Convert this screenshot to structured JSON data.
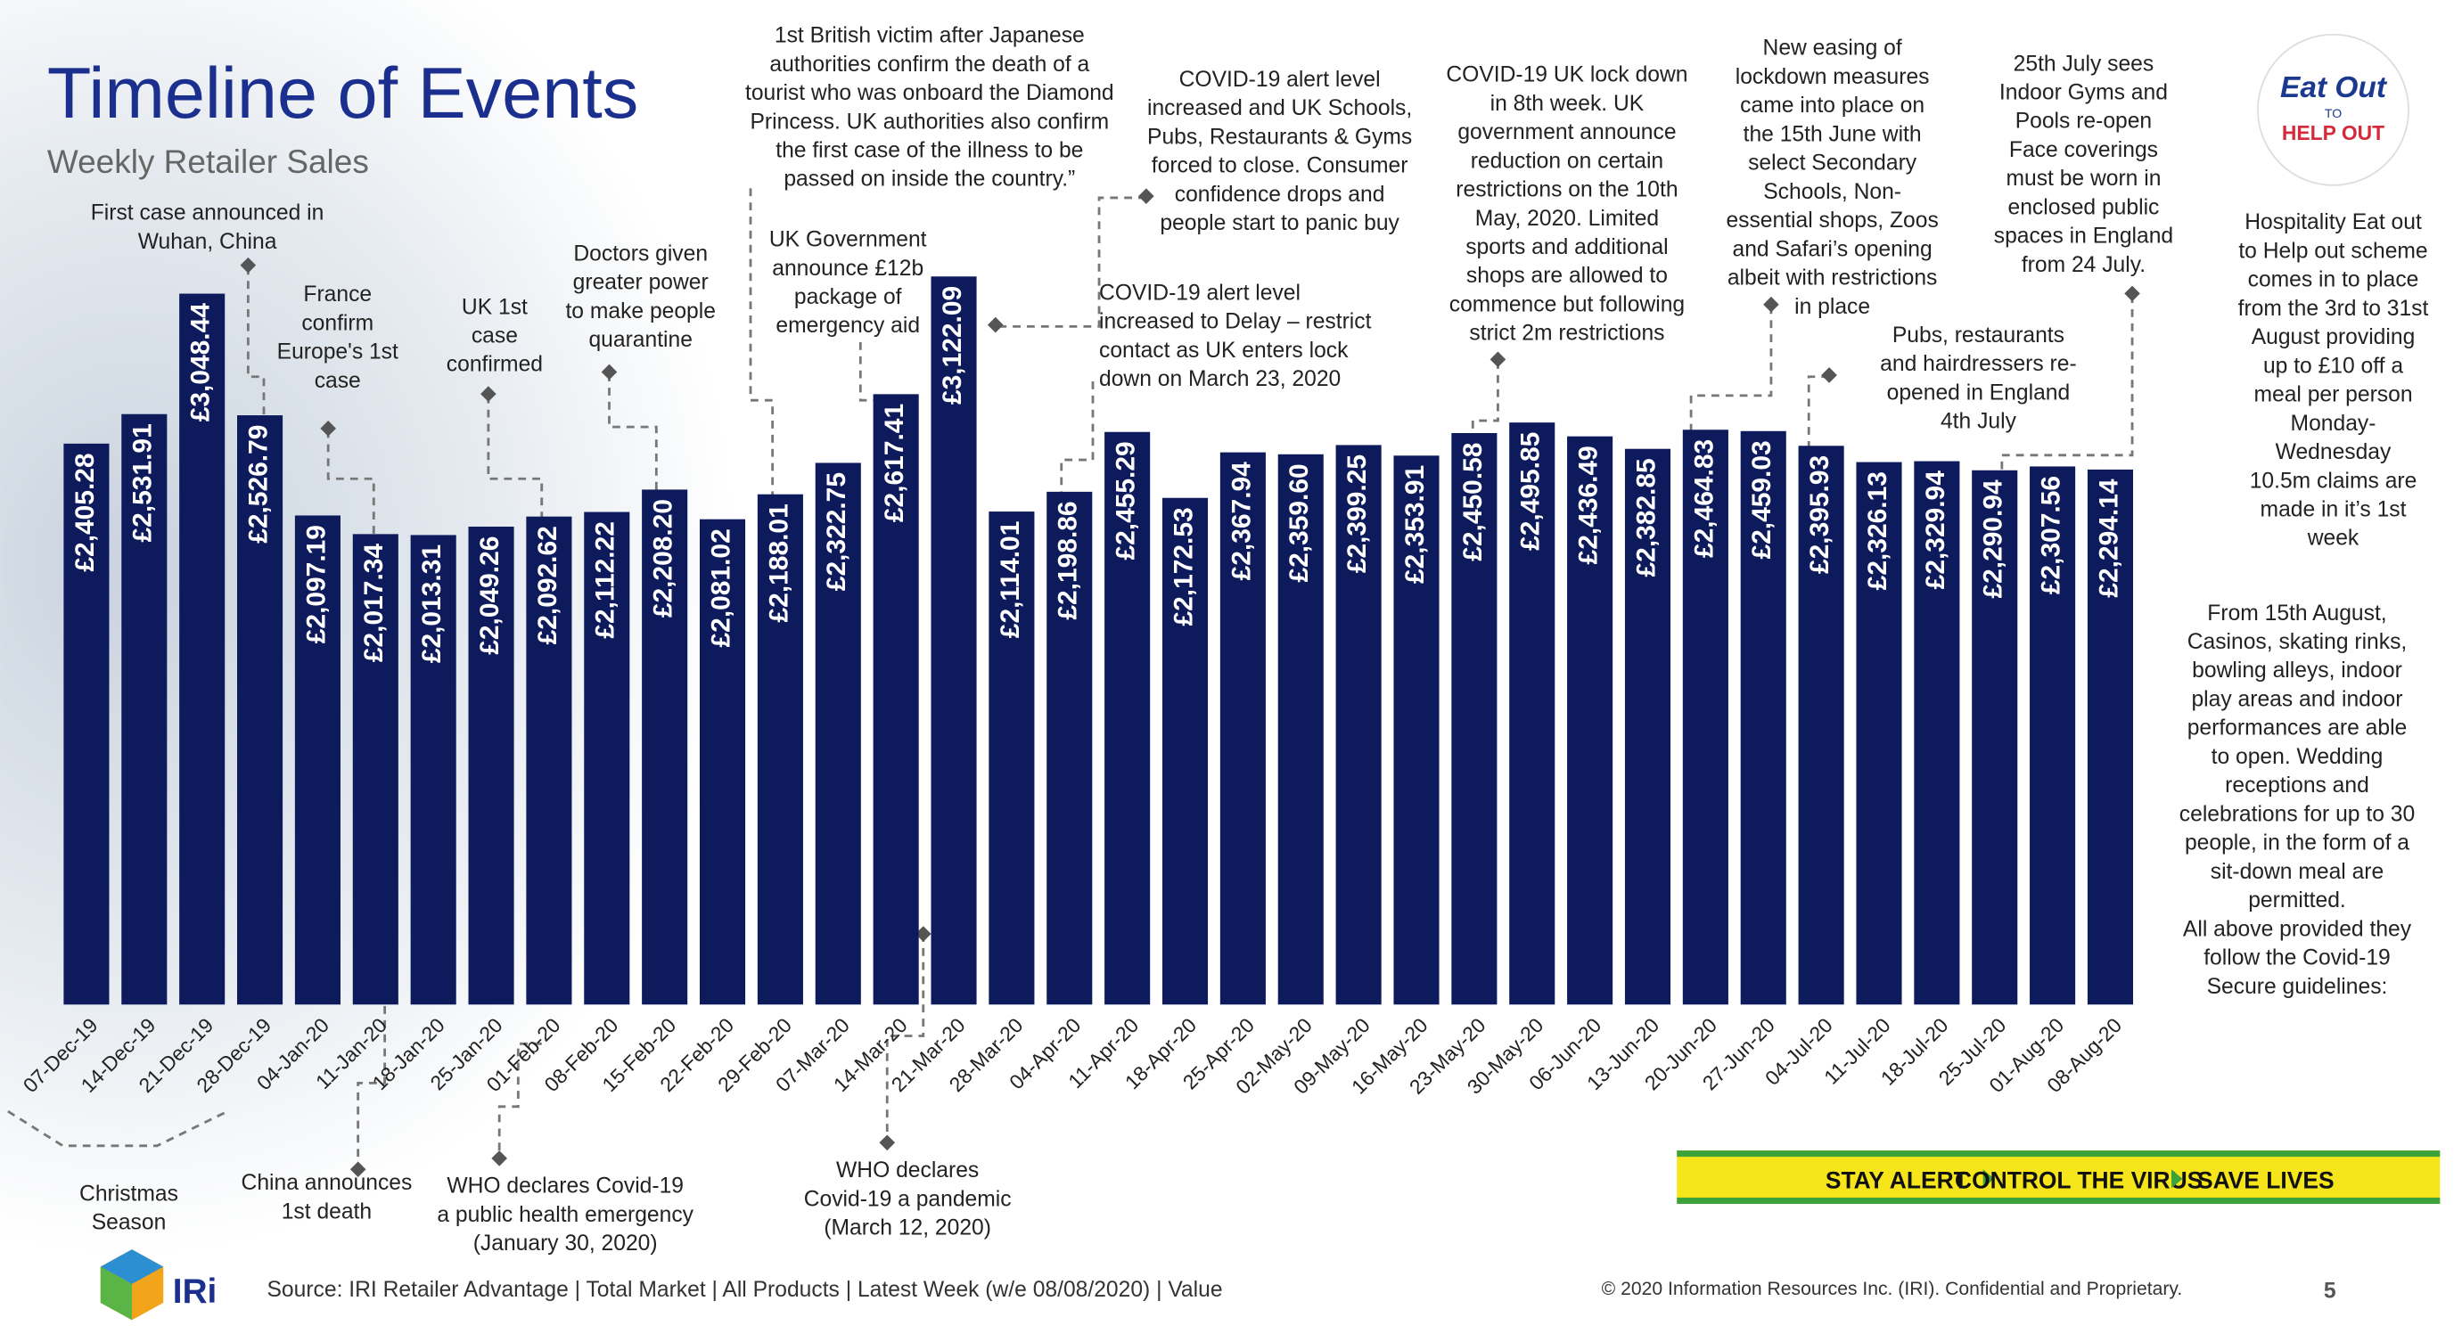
{
  "chart_data": {
    "type": "bar",
    "title": "Timeline of Events",
    "subtitle": "Weekly Retailer Sales",
    "color": "#0d1a5c",
    "categories": [
      "07-Dec-19",
      "14-Dec-19",
      "21-Dec-19",
      "28-Dec-19",
      "04-Jan-20",
      "11-Jan-20",
      "18-Jan-20",
      "25-Jan-20",
      "01-Feb-20",
      "08-Feb-20",
      "15-Feb-20",
      "22-Feb-20",
      "29-Feb-20",
      "07-Mar-20",
      "14-Mar-20",
      "21-Mar-20",
      "28-Mar-20",
      "04-Apr-20",
      "11-Apr-20",
      "18-Apr-20",
      "25-Apr-20",
      "02-May-20",
      "09-May-20",
      "16-May-20",
      "23-May-20",
      "30-May-20",
      "06-Jun-20",
      "13-Jun-20",
      "20-Jun-20",
      "27-Jun-20",
      "04-Jul-20",
      "11-Jul-20",
      "18-Jul-20",
      "25-Jul-20",
      "01-Aug-20",
      "08-Aug-20"
    ],
    "values": [
      2405.28,
      2531.91,
      3048.44,
      2526.79,
      2097.19,
      2017.34,
      2013.31,
      2049.26,
      2092.62,
      2112.22,
      2208.2,
      2081.02,
      2188.01,
      2322.75,
      2617.41,
      3122.09,
      2114.01,
      2198.86,
      2455.29,
      2172.53,
      2367.94,
      2359.6,
      2399.25,
      2353.91,
      2450.58,
      2495.85,
      2436.49,
      2382.85,
      2464.83,
      2459.03,
      2395.93,
      2326.13,
      2329.94,
      2290.94,
      2307.56,
      2294.14
    ],
    "value_labels": [
      "£2,405.28",
      "£2,531.91",
      "£3,048.44",
      "£2,526.79",
      "£2,097.19",
      "£2,017.34",
      "£2,013.31",
      "£2,049.26",
      "£2,092.62",
      "£2,112.22",
      "£2,208.20",
      "£2,081.02",
      "£2,188.01",
      "£2,322.75",
      "£2,617.41",
      "£3,122.09",
      "£2,114.01",
      "£2,198.86",
      "£2,455.29",
      "£2,172.53",
      "£2,367.94",
      "£2,359.60",
      "£2,399.25",
      "£2,353.91",
      "£2,450.58",
      "£2,495.85",
      "£2,436.49",
      "£2,382.85",
      "£2,464.83",
      "£2,459.03",
      "£2,395.93",
      "£2,326.13",
      "£2,329.94",
      "£2,290.94",
      "£2,307.56",
      "£2,294.14"
    ],
    "ylim": [
      0,
      3500
    ],
    "annotations": [
      {
        "lines": [
          "First case announced in",
          "Wuhan, China"
        ]
      },
      {
        "lines": [
          "France",
          "confirm",
          "Europe's 1st",
          "case"
        ]
      },
      {
        "lines": [
          "UK 1st",
          "case",
          "confirmed"
        ]
      },
      {
        "lines": [
          "Doctors given",
          "greater power",
          "to make people",
          "quarantine"
        ]
      },
      {
        "lines": [
          "1st British victim after Japanese",
          "authorities confirm the death of a",
          "tourist who was onboard the Diamond",
          "Princess. UK authorities also confirm",
          "the first case of the illness to be",
          "passed on inside the country.”"
        ]
      },
      {
        "lines": [
          "UK Government",
          "announce £12b",
          "package of",
          "emergency aid"
        ]
      },
      {
        "lines": [
          "COVID-19 alert level",
          "increased and UK Schools,",
          "Pubs, Restaurants & Gyms",
          "forced to close. Consumer",
          "confidence drops and",
          "people start to panic buy"
        ]
      },
      {
        "lines": [
          "COVID-19 alert level",
          "increased to Delay – restrict",
          "contact as UK enters lock",
          "down on March 23, 2020"
        ]
      },
      {
        "lines": [
          "COVID-19 UK lock down",
          "in 8th week. UK",
          "government announce",
          "reduction on certain",
          "restrictions on the 10th",
          "May, 2020. Limited",
          "sports and additional",
          "shops are allowed to",
          "commence but following",
          "strict 2m restrictions"
        ]
      },
      {
        "lines": [
          "New easing of",
          "lockdown measures",
          "came into place on",
          "the 15th June with",
          "select Secondary",
          "Schools, Non-",
          "essential shops, Zoos",
          "and Safari’s opening",
          "albeit with restrictions",
          "in place"
        ]
      },
      {
        "lines": [
          "25th July sees",
          "Indoor Gyms and",
          "Pools re-open",
          "Face coverings",
          "must be worn in",
          "enclosed public",
          "spaces in England",
          "from 24 July."
        ]
      },
      {
        "lines": [
          "Pubs, restaurants",
          "and hairdressers re-",
          "opened in England",
          "4th July"
        ]
      },
      {
        "lines": [
          "Hospitality Eat out",
          "to Help out scheme",
          "comes in to place",
          "from the 3rd to 31st",
          "August providing",
          "up to £10 off a",
          "meal per person",
          "Monday-",
          "Wednesday",
          "10.5m claims are",
          "made in it’s 1st",
          "week"
        ]
      },
      {
        "lines": [
          "From 15th August,",
          "Casinos, skating rinks,",
          "bowling alleys, indoor",
          "play areas and indoor",
          "performances are able",
          "to open. Wedding",
          "receptions and",
          "celebrations for up to 30",
          "people, in the form of a",
          "sit-down meal are",
          "permitted.",
          "All above provided they",
          "follow the Covid-19",
          "Secure guidelines:"
        ]
      },
      {
        "lines": [
          "Christmas",
          "Season"
        ]
      },
      {
        "lines": [
          "China announces",
          "1st death"
        ]
      },
      {
        "lines": [
          "WHO declares Covid-19",
          "a public health emergency",
          "(January 30, 2020)"
        ]
      },
      {
        "lines": [
          "WHO declares",
          "Covid-19 a pandemic",
          "(March 12, 2020)"
        ]
      }
    ]
  },
  "banner": [
    "STAY ALERT",
    "CONTROL THE VIRUS",
    "SAVE LIVES"
  ],
  "badge": [
    "Eat Out",
    "TO",
    "HELP OUT"
  ],
  "footer": {
    "logo": "IRi",
    "source": "Source: IRI Retailer Advantage | Total Market | All Products | Latest Week (w/e 08/08/2020) | Value",
    "copyright": "© 2020 Information Resources Inc. (IRI). Confidential and Proprietary.",
    "page": "5"
  }
}
